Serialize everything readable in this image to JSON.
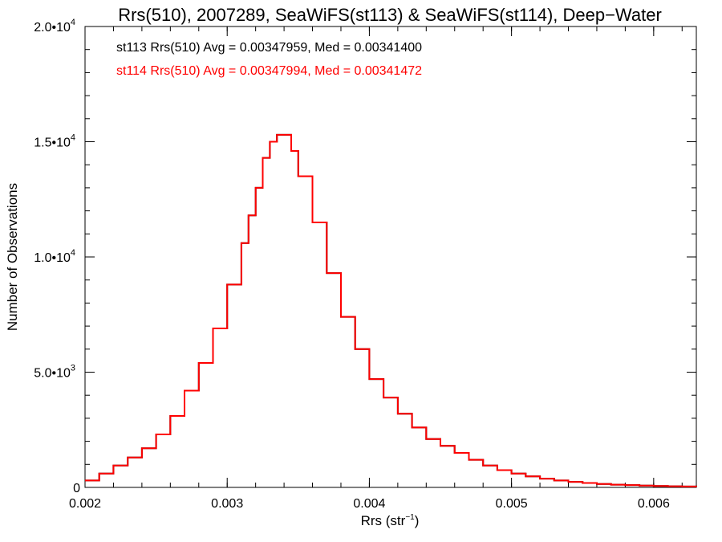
{
  "chart_data": {
    "type": "line",
    "title": "Rrs(510), 2007289, SeaWiFS(st113) & SeaWiFS(st114), Deep−Water",
    "xlabel": "Rrs (str",
    "xlabel_sup": "−1",
    "xlabel_close": ")",
    "ylabel": "Number of Observations",
    "xlim": [
      0.002,
      0.0063
    ],
    "ylim": [
      0,
      20000
    ],
    "x_ticks": [
      {
        "value": 0.002,
        "label": "0.002"
      },
      {
        "value": 0.003,
        "label": "0.003"
      },
      {
        "value": 0.004,
        "label": "0.004"
      },
      {
        "value": 0.005,
        "label": "0.005"
      },
      {
        "value": 0.006,
        "label": "0.006"
      }
    ],
    "y_ticks": [
      {
        "value": 0,
        "label": "0",
        "sup": ""
      },
      {
        "value": 5000,
        "label": "5.0•10",
        "sup": "3"
      },
      {
        "value": 10000,
        "label": "1.0•10",
        "sup": "4"
      },
      {
        "value": 15000,
        "label": "1.5•10",
        "sup": "4"
      },
      {
        "value": 20000,
        "label": "2.0•10",
        "sup": "4"
      }
    ],
    "annotations": [
      {
        "text": "st113 Rrs(510) Avg = 0.00347959, Med = 0.00341400",
        "color": "#000000"
      },
      {
        "text": "st114 Rrs(510) Avg = 0.00347994, Med = 0.00341472",
        "color": "#ff0000"
      }
    ],
    "grid": false,
    "series": [
      {
        "name": "st113",
        "color": "#000000",
        "x": [
          0.002,
          0.0021,
          0.0022,
          0.0023,
          0.0024,
          0.0025,
          0.0026,
          0.0027,
          0.0028,
          0.0029,
          0.003,
          0.0031,
          0.00315,
          0.0032,
          0.00325,
          0.0033,
          0.00335,
          0.0034,
          0.00345,
          0.0035,
          0.0036,
          0.0037,
          0.0038,
          0.0039,
          0.004,
          0.0041,
          0.0042,
          0.0043,
          0.0044,
          0.0045,
          0.0046,
          0.0047,
          0.0048,
          0.0049,
          0.005,
          0.0051,
          0.0052,
          0.0053,
          0.0054,
          0.0055,
          0.0056,
          0.0057,
          0.0058,
          0.0059,
          0.006,
          0.0061,
          0.0062,
          0.0063
        ],
        "y": [
          300,
          600,
          950,
          1300,
          1700,
          2300,
          3100,
          4200,
          5400,
          6900,
          8800,
          10600,
          11800,
          13000,
          14300,
          15000,
          15300,
          15300,
          14600,
          13500,
          11500,
          9300,
          7400,
          6000,
          4700,
          3900,
          3200,
          2600,
          2100,
          1800,
          1500,
          1200,
          950,
          750,
          600,
          480,
          380,
          300,
          240,
          190,
          150,
          120,
          100,
          80,
          60,
          50,
          40,
          30
        ]
      },
      {
        "name": "st114",
        "color": "#ff0000",
        "x": [
          0.002,
          0.0021,
          0.0022,
          0.0023,
          0.0024,
          0.0025,
          0.0026,
          0.0027,
          0.0028,
          0.0029,
          0.003,
          0.0031,
          0.00315,
          0.0032,
          0.00325,
          0.0033,
          0.00335,
          0.0034,
          0.00345,
          0.0035,
          0.0036,
          0.0037,
          0.0038,
          0.0039,
          0.004,
          0.0041,
          0.0042,
          0.0043,
          0.0044,
          0.0045,
          0.0046,
          0.0047,
          0.0048,
          0.0049,
          0.005,
          0.0051,
          0.0052,
          0.0053,
          0.0054,
          0.0055,
          0.0056,
          0.0057,
          0.0058,
          0.0059,
          0.006,
          0.0061,
          0.0062,
          0.0063
        ],
        "y": [
          300,
          600,
          950,
          1300,
          1700,
          2300,
          3100,
          4200,
          5400,
          6900,
          8800,
          10600,
          11800,
          13000,
          14300,
          15000,
          15300,
          15300,
          14600,
          13500,
          11500,
          9300,
          7400,
          6000,
          4700,
          3900,
          3200,
          2600,
          2100,
          1800,
          1500,
          1200,
          950,
          750,
          600,
          480,
          380,
          300,
          240,
          190,
          150,
          120,
          100,
          80,
          60,
          50,
          40,
          30
        ]
      }
    ]
  }
}
